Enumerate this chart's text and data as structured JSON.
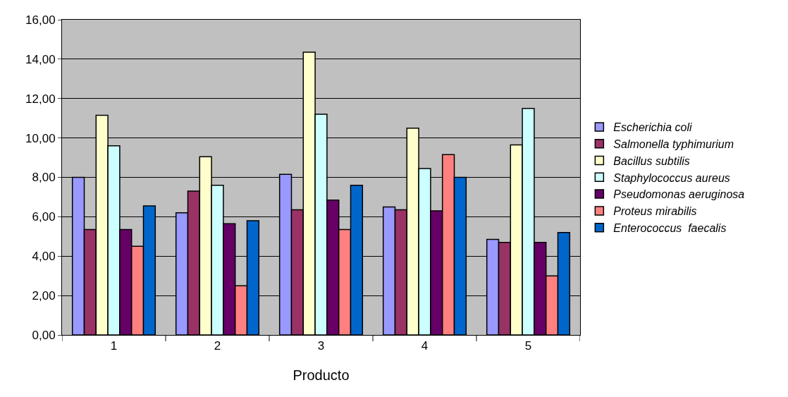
{
  "chart_data": {
    "type": "bar",
    "xlabel": "Producto",
    "categories": [
      "1",
      "2",
      "3",
      "4",
      "5"
    ],
    "series": [
      {
        "name": "Escherichia coli",
        "color": "#9999ff",
        "values": [
          8.0,
          6.2,
          8.15,
          6.5,
          4.85
        ]
      },
      {
        "name": "Salmonella typhimurium",
        "color": "#993366",
        "values": [
          5.35,
          7.3,
          6.35,
          6.35,
          4.7
        ]
      },
      {
        "name": "Bacillus subtilis",
        "color": "#ffffcc",
        "values": [
          11.15,
          9.05,
          14.35,
          10.5,
          9.65
        ]
      },
      {
        "name": "Staphylococcus aureus",
        "color": "#ccffff",
        "values": [
          9.6,
          7.6,
          11.2,
          8.45,
          11.5
        ]
      },
      {
        "name": "Pseudomonas aeruginosa",
        "color": "#660066",
        "values": [
          5.35,
          5.65,
          6.85,
          6.3,
          4.7
        ]
      },
      {
        "name": "Proteus mirabilis",
        "color": "#ff8080",
        "values": [
          4.5,
          2.5,
          5.35,
          9.15,
          3.0
        ]
      },
      {
        "name": "Enterococcus  faecalis",
        "color": "#0066cc",
        "values": [
          6.55,
          5.8,
          7.6,
          8.0,
          5.2
        ]
      }
    ],
    "ylim": [
      0,
      16
    ],
    "yticks": [
      {
        "value": 0,
        "label": "0,00"
      },
      {
        "value": 2,
        "label": "2,00"
      },
      {
        "value": 4,
        "label": "4,00"
      },
      {
        "value": 6,
        "label": "6,00"
      },
      {
        "value": 8,
        "label": "8,00"
      },
      {
        "value": 10,
        "label": "10,00"
      },
      {
        "value": 12,
        "label": "12,00"
      },
      {
        "value": 14,
        "label": "14,00"
      },
      {
        "value": 16,
        "label": "16,00"
      }
    ],
    "grid": "y",
    "legend": "right"
  }
}
